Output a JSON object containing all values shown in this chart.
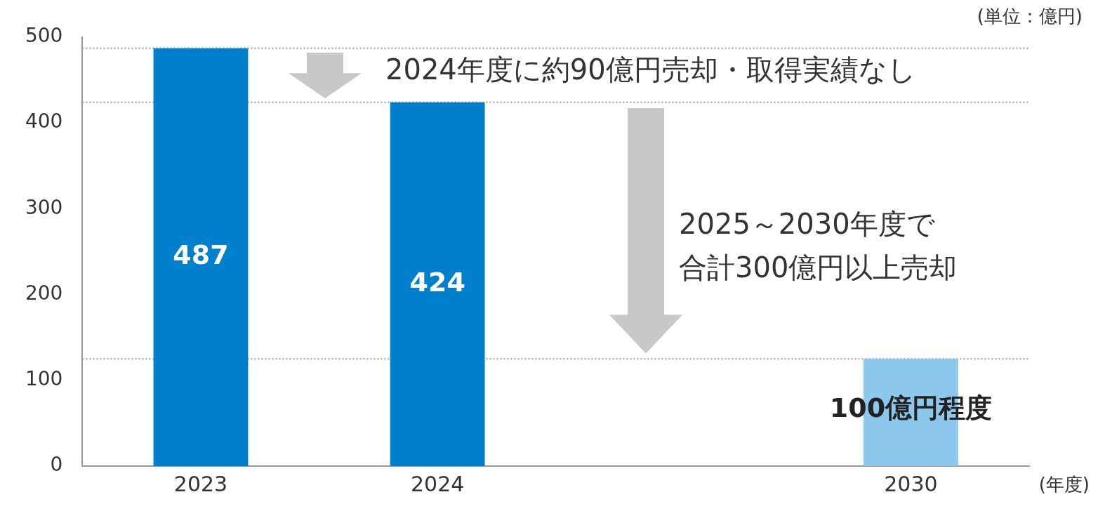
{
  "chart_data": {
    "type": "bar",
    "categories": [
      "2023",
      "2024",
      null,
      "2030"
    ],
    "values": [
      487,
      424,
      null,
      125
    ],
    "colors": [
      "#0080cc",
      "#0080cc",
      null,
      "#8cc8ec"
    ],
    "value_labels": [
      "487",
      "424",
      null,
      null
    ],
    "ylim": [
      0,
      500
    ],
    "yticks": [
      0,
      100,
      200,
      300,
      400,
      500
    ],
    "grid": false,
    "legend": false,
    "ylabel": "(単位：億円)",
    "xlabel": "(年度)",
    "ref_lines": [
      {
        "axis": "y",
        "value": 487,
        "color": "#aaaaaa",
        "line_style": "dotted"
      },
      {
        "axis": "y",
        "value": 424,
        "color": "#aaaaaa",
        "line_style": "dotted"
      },
      {
        "axis": "y",
        "value": 125,
        "color": "#aaaaaa",
        "line_style": "dotted"
      }
    ],
    "annotations": [
      "2024年度に約90億円売却・取得実績なし",
      "2025～2030年度で",
      "合計300億円以上売却",
      "100億円程度"
    ]
  }
}
